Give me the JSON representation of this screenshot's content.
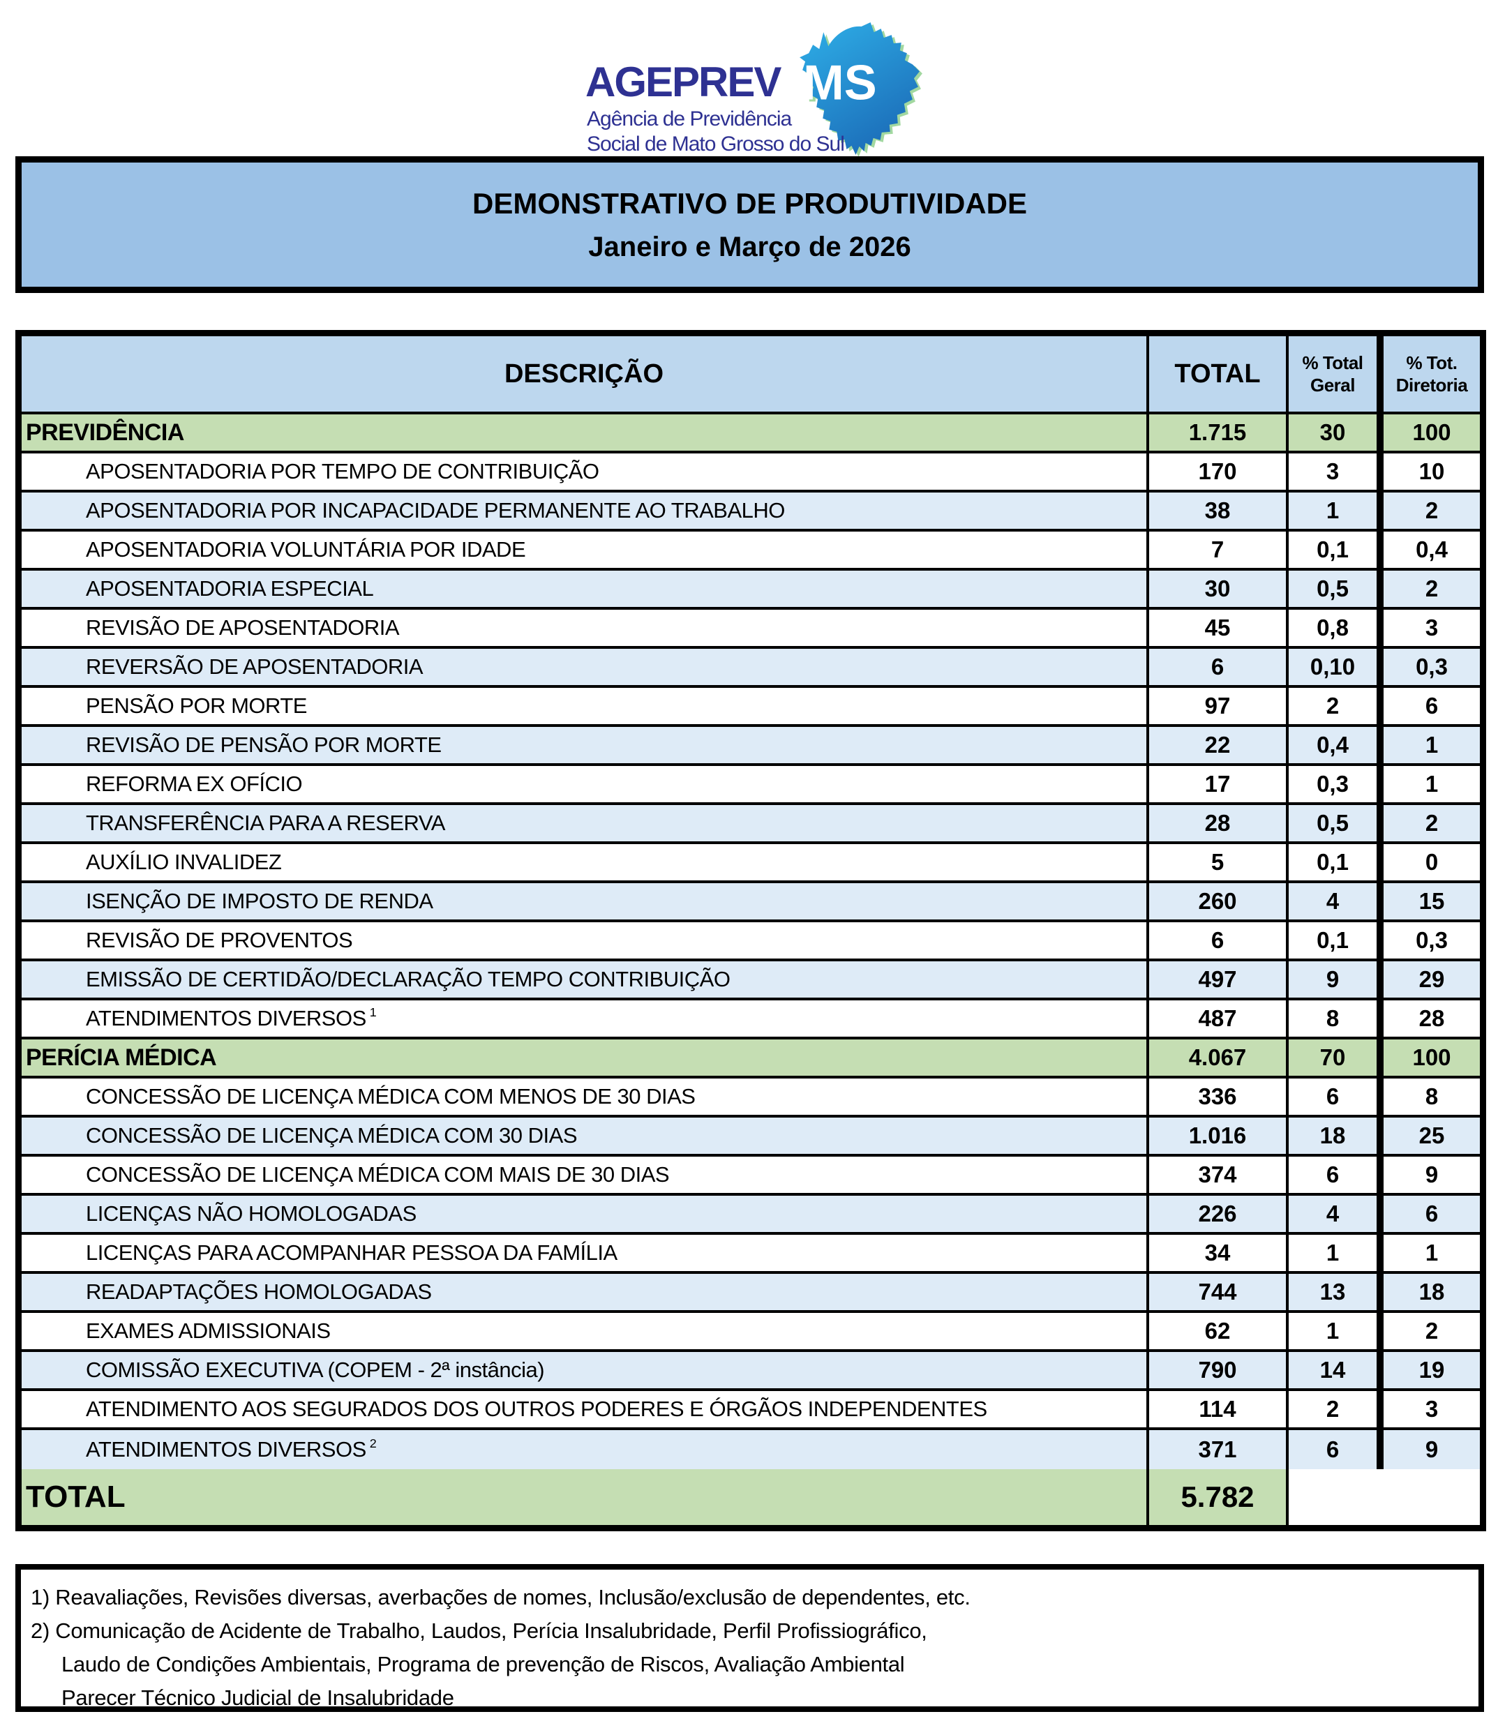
{
  "colors": {
    "banner_blue": "#9BC1E6",
    "header_blue": "#BDD7EE",
    "stripe_blue": "#DEEBF7",
    "section_green": "#C5DEB3",
    "logo_navy": "#2E3192",
    "map_blue_light": "#2FB0E8",
    "map_blue_dark": "#1C6FBA"
  },
  "logo": {
    "brand": "AGEPREV",
    "state_abbrev": "MS",
    "subtitle_line1": "Agência de Previdência",
    "subtitle_line2": "Social de Mato Grosso do Sul"
  },
  "banner": {
    "title": "DEMONSTRATIVO DE PRODUTIVIDADE",
    "period": "Janeiro e Março de 2026"
  },
  "table": {
    "header": {
      "descricao": "DESCRIÇÃO",
      "total": "TOTAL",
      "pct_total_geral_line1": "% Total",
      "pct_total_geral_line2": "Geral",
      "pct_tot_diretoria_line1": "% Tot.",
      "pct_tot_diretoria_line2": "Diretoria"
    },
    "sections": [
      {
        "name": "PREVIDÊNCIA",
        "total": "1.715",
        "pct_geral": "30",
        "pct_diretoria": "100",
        "items": [
          {
            "descricao": "APOSENTADORIA POR TEMPO DE CONTRIBUIÇÃO",
            "total": "170",
            "pct_geral": "3",
            "pct_diretoria": "10"
          },
          {
            "descricao": "APOSENTADORIA POR INCAPACIDADE PERMANENTE AO TRABALHO",
            "total": "38",
            "pct_geral": "1",
            "pct_diretoria": "2"
          },
          {
            "descricao": "APOSENTADORIA VOLUNTÁRIA POR IDADE",
            "total": "7",
            "pct_geral": "0,1",
            "pct_diretoria": "0,4"
          },
          {
            "descricao": "APOSENTADORIA ESPECIAL",
            "total": "30",
            "pct_geral": "0,5",
            "pct_diretoria": "2"
          },
          {
            "descricao": "REVISÃO DE APOSENTADORIA",
            "total": "45",
            "pct_geral": "0,8",
            "pct_diretoria": "3"
          },
          {
            "descricao": "REVERSÃO DE APOSENTADORIA",
            "total": "6",
            "pct_geral": "0,10",
            "pct_diretoria": "0,3"
          },
          {
            "descricao": "PENSÃO POR MORTE",
            "total": "97",
            "pct_geral": "2",
            "pct_diretoria": "6"
          },
          {
            "descricao": "REVISÃO DE PENSÃO POR MORTE",
            "total": "22",
            "pct_geral": "0,4",
            "pct_diretoria": "1"
          },
          {
            "descricao": "REFORMA EX OFÍCIO",
            "total": "17",
            "pct_geral": "0,3",
            "pct_diretoria": "1"
          },
          {
            "descricao": "TRANSFERÊNCIA PARA A RESERVA",
            "total": "28",
            "pct_geral": "0,5",
            "pct_diretoria": "2"
          },
          {
            "descricao": "AUXÍLIO INVALIDEZ",
            "total": "5",
            "pct_geral": "0,1",
            "pct_diretoria": "0"
          },
          {
            "descricao": "ISENÇÃO DE IMPOSTO DE RENDA",
            "total": "260",
            "pct_geral": "4",
            "pct_diretoria": "15"
          },
          {
            "descricao": "REVISÃO DE PROVENTOS",
            "total": "6",
            "pct_geral": "0,1",
            "pct_diretoria": "0,3"
          },
          {
            "descricao": "EMISSÃO DE CERTIDÃO/DECLARAÇÃO TEMPO CONTRIBUIÇÃO",
            "total": "497",
            "pct_geral": "9",
            "pct_diretoria": "29"
          },
          {
            "descricao": "ATENDIMENTOS DIVERSOS",
            "sup": "1",
            "total": "487",
            "pct_geral": "8",
            "pct_diretoria": "28"
          }
        ]
      },
      {
        "name": "PERÍCIA MÉDICA",
        "total": "4.067",
        "pct_geral": "70",
        "pct_diretoria": "100",
        "items": [
          {
            "descricao": "CONCESSÃO DE LICENÇA MÉDICA COM MENOS DE 30 DIAS",
            "total": "336",
            "pct_geral": "6",
            "pct_diretoria": "8"
          },
          {
            "descricao": "CONCESSÃO DE LICENÇA MÉDICA COM 30 DIAS",
            "total": "1.016",
            "pct_geral": "18",
            "pct_diretoria": "25"
          },
          {
            "descricao": "CONCESSÃO DE LICENÇA MÉDICA COM MAIS DE 30 DIAS",
            "total": "374",
            "pct_geral": "6",
            "pct_diretoria": "9"
          },
          {
            "descricao": "LICENÇAS NÃO HOMOLOGADAS",
            "total": "226",
            "pct_geral": "4",
            "pct_diretoria": "6"
          },
          {
            "descricao": "LICENÇAS PARA ACOMPANHAR PESSOA DA FAMÍLIA",
            "total": "34",
            "pct_geral": "1",
            "pct_diretoria": "1"
          },
          {
            "descricao": "READAPTAÇÕES HOMOLOGADAS",
            "total": "744",
            "pct_geral": "13",
            "pct_diretoria": "18"
          },
          {
            "descricao": "EXAMES ADMISSIONAIS",
            "total": "62",
            "pct_geral": "1",
            "pct_diretoria": "2"
          },
          {
            "descricao": "COMISSÃO EXECUTIVA (COPEM - 2ª instância)",
            "total": "790",
            "pct_geral": "14",
            "pct_diretoria": "19"
          },
          {
            "descricao": "ATENDIMENTO AOS SEGURADOS DOS OUTROS PODERES E ÓRGÃOS INDEPENDENTES",
            "total": "114",
            "pct_geral": "2",
            "pct_diretoria": "3"
          },
          {
            "descricao": "ATENDIMENTOS DIVERSOS",
            "sup": "2",
            "total": "371",
            "pct_geral": "6",
            "pct_diretoria": "9"
          }
        ]
      }
    ],
    "total_row": {
      "label": "TOTAL",
      "total": "5.782"
    }
  },
  "footnotes": {
    "lines": [
      {
        "text": "1) Reavaliações, Revisões diversas,  averbações de nomes, Inclusão/exclusão de dependentes, etc.",
        "indent": false
      },
      {
        "text": "2) Comunicação de Acidente de Trabalho, Laudos, Perícia Insalubridade,  Perfil Profissiográfico,",
        "indent": false
      },
      {
        "text": "Laudo de Condições Ambientais, Programa de prevenção de Riscos, Avaliação Ambiental",
        "indent": true
      },
      {
        "text": "Parecer Técnico Judicial de Insalubridade",
        "indent": true
      }
    ]
  }
}
